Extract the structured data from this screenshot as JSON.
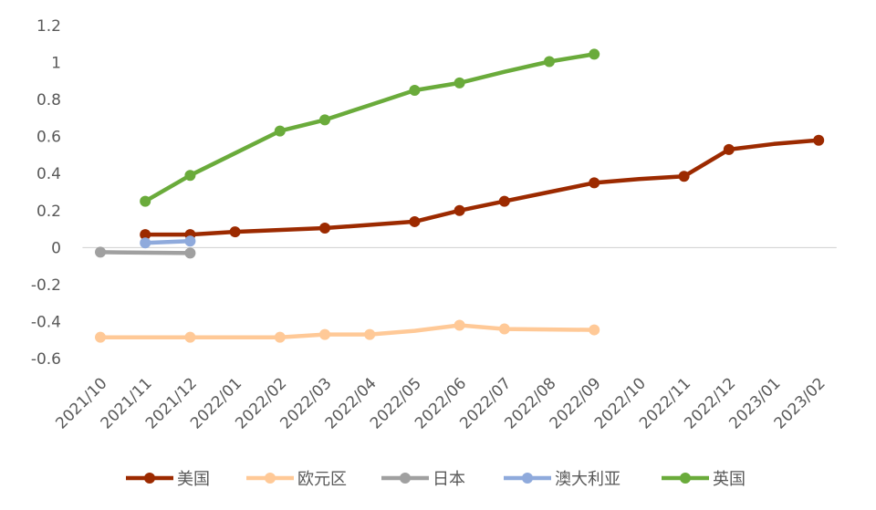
{
  "chart_data": {
    "type": "line",
    "title": "",
    "xlabel": "",
    "ylabel": "",
    "categories": [
      "2021/10",
      "2021/11",
      "2021/12",
      "2022/01",
      "2022/02",
      "2022/03",
      "2022/04",
      "2022/05",
      "2022/06",
      "2022/07",
      "2022/08",
      "2022/09",
      "2022/10",
      "2022/11",
      "2022/12",
      "2023/01",
      "2023/02"
    ],
    "ylim": [
      -0.6,
      1.2
    ],
    "yticks": [
      "1.2",
      "1",
      "0.8",
      "0.6",
      "0.4",
      "0.2",
      "0",
      "-0.2",
      "-0.4",
      "-0.6"
    ],
    "grid": false,
    "legend_position": "bottom",
    "series": [
      {
        "name": "美国",
        "color": "#9c2a00",
        "points": [
          {
            "x": "2021/11",
            "y": 0.07,
            "marker": true
          },
          {
            "x": "2021/12",
            "y": 0.07,
            "marker": true
          },
          {
            "x": "2022/01",
            "y": 0.085,
            "marker": true
          },
          {
            "x": "2022/03",
            "y": 0.105,
            "marker": true
          },
          {
            "x": "2022/05",
            "y": 0.14,
            "marker": true
          },
          {
            "x": "2022/06",
            "y": 0.2,
            "marker": true
          },
          {
            "x": "2022/07",
            "y": 0.25,
            "marker": true
          },
          {
            "x": "2022/08",
            "y": 0.3,
            "marker": false
          },
          {
            "x": "2022/09",
            "y": 0.35,
            "marker": true
          },
          {
            "x": "2022/10",
            "y": 0.37,
            "marker": false
          },
          {
            "x": "2022/11",
            "y": 0.385,
            "marker": true
          },
          {
            "x": "2022/12",
            "y": 0.53,
            "marker": true
          },
          {
            "x": "2023/01",
            "y": 0.56,
            "marker": false
          },
          {
            "x": "2023/02",
            "y": 0.58,
            "marker": true
          }
        ]
      },
      {
        "name": "欧元区",
        "color": "#ffc997",
        "points": [
          {
            "x": "2021/10",
            "y": -0.485,
            "marker": true
          },
          {
            "x": "2021/12",
            "y": -0.485,
            "marker": true
          },
          {
            "x": "2022/02",
            "y": -0.485,
            "marker": true
          },
          {
            "x": "2022/03",
            "y": -0.47,
            "marker": true
          },
          {
            "x": "2022/04",
            "y": -0.47,
            "marker": true
          },
          {
            "x": "2022/05",
            "y": -0.45,
            "marker": false
          },
          {
            "x": "2022/06",
            "y": -0.42,
            "marker": true
          },
          {
            "x": "2022/07",
            "y": -0.44,
            "marker": true
          },
          {
            "x": "2022/09",
            "y": -0.445,
            "marker": true
          }
        ]
      },
      {
        "name": "日本",
        "color": "#a0a0a0",
        "points": [
          {
            "x": "2021/10",
            "y": -0.025,
            "marker": true
          },
          {
            "x": "2021/12",
            "y": -0.03,
            "marker": true
          }
        ]
      },
      {
        "name": "澳大利亚",
        "color": "#8faadc",
        "points": [
          {
            "x": "2021/11",
            "y": 0.025,
            "marker": true
          },
          {
            "x": "2021/12",
            "y": 0.035,
            "marker": true
          }
        ]
      },
      {
        "name": "英国",
        "color": "#6aab3b",
        "points": [
          {
            "x": "2021/11",
            "y": 0.25,
            "marker": true
          },
          {
            "x": "2021/12",
            "y": 0.39,
            "marker": true
          },
          {
            "x": "2022/02",
            "y": 0.63,
            "marker": true
          },
          {
            "x": "2022/03",
            "y": 0.69,
            "marker": true
          },
          {
            "x": "2022/04",
            "y": 0.77,
            "marker": false
          },
          {
            "x": "2022/05",
            "y": 0.85,
            "marker": true
          },
          {
            "x": "2022/06",
            "y": 0.89,
            "marker": true
          },
          {
            "x": "2022/07",
            "y": 0.95,
            "marker": false
          },
          {
            "x": "2022/08",
            "y": 1.005,
            "marker": true
          },
          {
            "x": "2022/09",
            "y": 1.045,
            "marker": true
          }
        ]
      }
    ]
  }
}
